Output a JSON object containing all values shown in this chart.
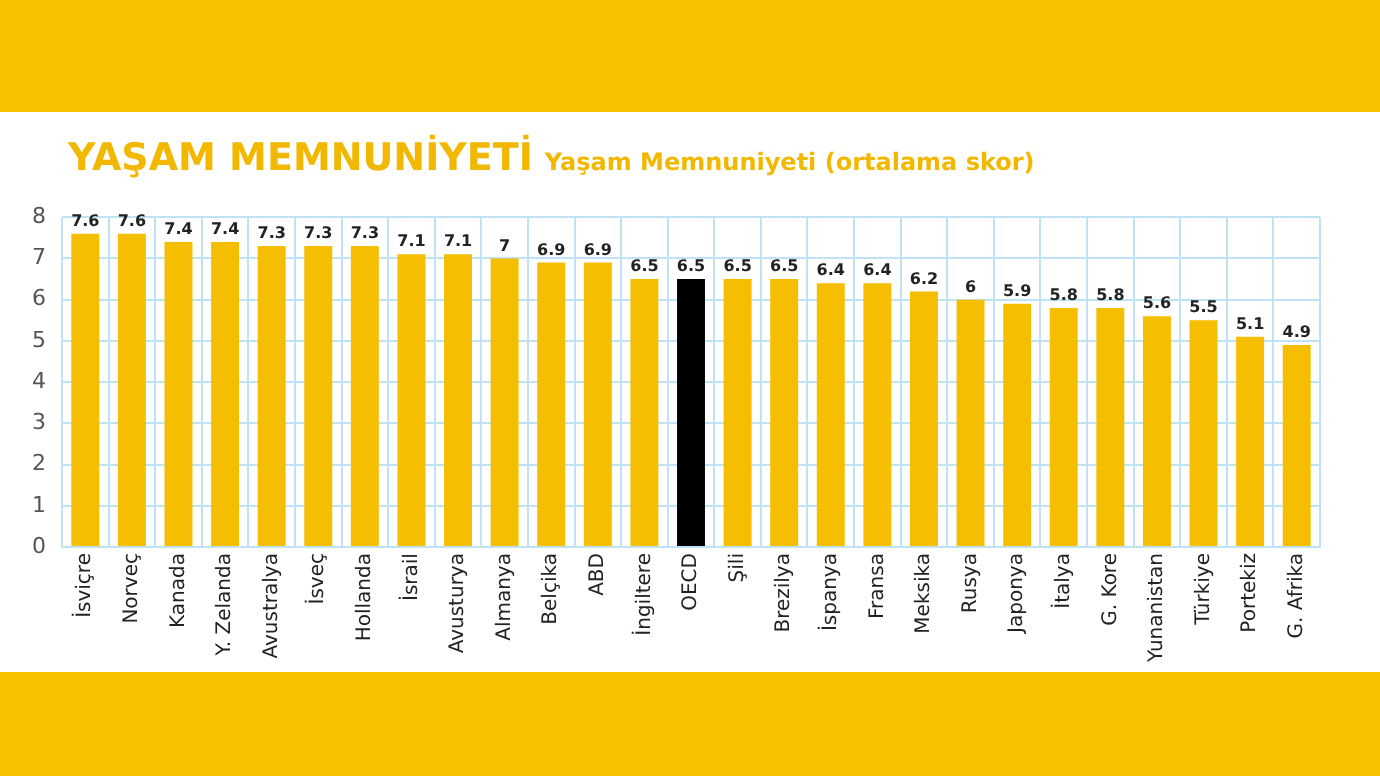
{
  "chart_data": {
    "type": "bar",
    "title": "YAŞAM MEMNUNİYETİ",
    "subtitle": "Yaşam Memnuniyeti (ortalama skor)",
    "categories": [
      "İsviçre",
      "Norveç",
      "Kanada",
      "Y. Zelanda",
      "Avustralya",
      "İsveç",
      "Hollanda",
      "İsrail",
      "Avusturya",
      "Almanya",
      "Belçika",
      "ABD",
      "İngiltere",
      "OECD",
      "Şili",
      "Brezilya",
      "İspanya",
      "Fransa",
      "Meksika",
      "Rusya",
      "Japonya",
      "İtalya",
      "G. Kore",
      "Yunanistan",
      "Türkiye",
      "Portekiz",
      "G. Afrika"
    ],
    "values": [
      7.6,
      7.6,
      7.4,
      7.4,
      7.3,
      7.3,
      7.3,
      7.1,
      7.1,
      7,
      6.9,
      6.9,
      6.5,
      6.5,
      6.5,
      6.5,
      6.4,
      6.4,
      6.2,
      6,
      5.9,
      5.8,
      5.8,
      5.6,
      5.5,
      5.1,
      4.9
    ],
    "colors": [
      "#f5be00",
      "#f5be00",
      "#f5be00",
      "#f5be00",
      "#f5be00",
      "#f5be00",
      "#f5be00",
      "#f5be00",
      "#f5be00",
      "#f5be00",
      "#f5be00",
      "#f5be00",
      "#f5be00",
      "#000000",
      "#f5be00",
      "#f5be00",
      "#f5be00",
      "#f5be00",
      "#f5be00",
      "#f5be00",
      "#f5be00",
      "#f5be00",
      "#f5be00",
      "#f5be00",
      "#f5be00",
      "#f5be00",
      "#f5be00"
    ],
    "ylim": [
      0,
      8
    ],
    "yticks": [
      0,
      1,
      2,
      3,
      4,
      5,
      6,
      7,
      8
    ],
    "grid": true,
    "data_labels": true
  }
}
